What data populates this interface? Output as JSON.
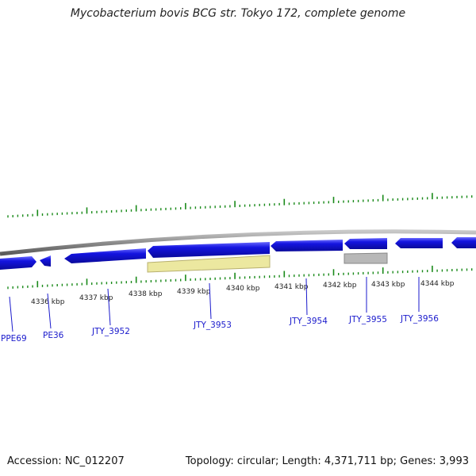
{
  "title": "Mycobacterium bovis BCG str. Tokyo 172, complete genome",
  "footer": {
    "accession": "Accession: NC_012207",
    "summary": "Topology: circular; Length: 4,371,711 bp; Genes: 3,993"
  },
  "colors": {
    "background": "#ffffff",
    "backbone": "#8c8c8c",
    "gene_forward": "#1414e0",
    "gene_highlight": "#ece8a0",
    "gene_grey": "#b8b8b8",
    "tick": "#1a8a1a",
    "label": "#1a1acc"
  },
  "scale_labels": [
    "4336 kbp",
    "4337 kbp",
    "4338 kbp",
    "4339 kbp",
    "4340 kbp",
    "4341 kbp",
    "4342 kbp",
    "4343 kbp",
    "4344 kbp"
  ],
  "genes": [
    {
      "name": "PPE69"
    },
    {
      "name": "PE36"
    },
    {
      "name": "JTY_3952"
    },
    {
      "name": "JTY_3953"
    },
    {
      "name": "JTY_3954"
    },
    {
      "name": "JTY_3955"
    },
    {
      "name": "JTY_3956"
    }
  ]
}
